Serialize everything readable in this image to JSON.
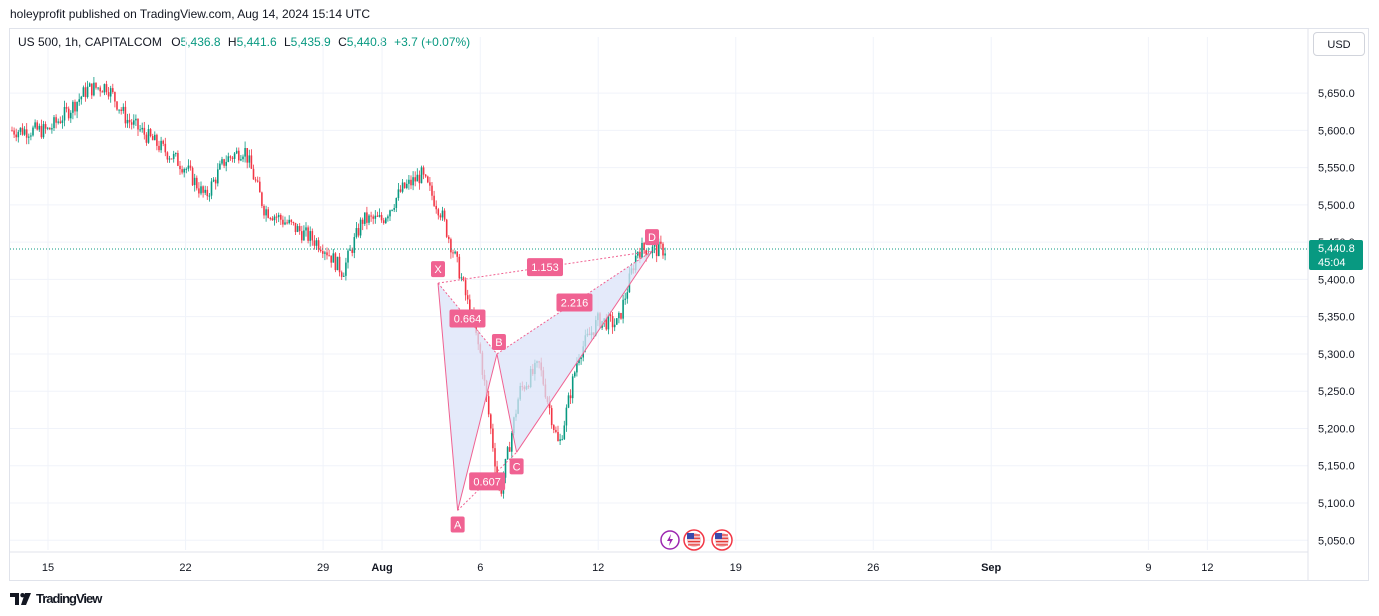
{
  "header": {
    "text": "holeyprofit published on TradingView.com, Aug 14, 2024 15:14 UTC"
  },
  "legend": {
    "symbol": "US 500, 1h, CAPITALCOM",
    "o_label": "O",
    "o_value": "5,436.8",
    "h_label": "H",
    "h_value": "5,441.6",
    "l_label": "L",
    "l_value": "5,435.9",
    "c_label": "C",
    "c_value": "5,440.8",
    "change": "+3.7 (+0.07%)"
  },
  "currency_button": "USD",
  "footer": {
    "brand": "TradingView",
    "logo_icon": "tradingview-logo-icon"
  },
  "colors": {
    "up": "#089981",
    "down": "#f23645",
    "pattern": "#f06292",
    "pattern_fill": "#dbe3f8",
    "price_line": "#089981"
  },
  "chart_data": {
    "type": "candlestick",
    "ylim": [
      5030,
      5680
    ],
    "y_ticks": [
      "5,050.0",
      "5,100.0",
      "5,150.0",
      "5,200.0",
      "5,250.0",
      "5,300.0",
      "5,350.0",
      "5,400.0",
      "5,450.0",
      "5,500.0",
      "5,550.0",
      "5,600.0",
      "5,650.0"
    ],
    "x_ticks": [
      "15",
      "22",
      "29",
      "Aug",
      "6",
      "12",
      "19",
      "26",
      "Sep",
      "9",
      "12"
    ],
    "last_price": {
      "value": 5440.8,
      "label": "5,440.8",
      "countdown": "45:04"
    },
    "price_path": [
      [
        "Jul 15",
        5600
      ],
      [
        "Jul 16",
        5625
      ],
      [
        "Jul 17",
        5655
      ],
      [
        "Jul 18",
        5660
      ],
      [
        "Jul 19",
        5615
      ],
      [
        "Jul 22",
        5550
      ],
      [
        "Jul 23",
        5510
      ],
      [
        "Jul 24",
        5560
      ],
      [
        "Jul 25",
        5575
      ],
      [
        "Jul 26",
        5495
      ],
      [
        "Jul 29",
        5445
      ],
      [
        "Jul 30",
        5410
      ],
      [
        "Jul 31",
        5480
      ],
      [
        "Aug 1",
        5480
      ],
      [
        "Aug 2",
        5520
      ],
      [
        "Aug 3",
        5540
      ],
      [
        "Aug 4",
        5490
      ],
      [
        "Aug 5",
        5405
      ],
      [
        "Aug 6",
        5300
      ],
      [
        "Aug 7",
        5110
      ],
      [
        "Aug 8",
        5250
      ],
      [
        "Aug 9",
        5285
      ],
      [
        "Aug 10",
        5175
      ],
      [
        "Aug 11",
        5300
      ],
      [
        "Aug 12",
        5345
      ],
      [
        "Aug 13",
        5340
      ],
      [
        "Aug 14",
        5440
      ]
    ],
    "harmonic_pattern": {
      "points": [
        {
          "label": "X",
          "date": "Aug 4",
          "price": 5395
        },
        {
          "label": "A",
          "date": "Aug 5",
          "price": 5090
        },
        {
          "label": "B",
          "date": "Aug 7",
          "price": 5300
        },
        {
          "label": "C",
          "date": "Aug 8",
          "price": 5168
        },
        {
          "label": "D",
          "date": "Aug 14",
          "price": 5438
        }
      ],
      "ratios": [
        {
          "label": "1.153",
          "between": "X-D"
        },
        {
          "label": "0.664",
          "between": "X-B"
        },
        {
          "label": "2.216",
          "between": "B-D"
        },
        {
          "label": "0.607",
          "between": "A-C"
        }
      ]
    },
    "event_icons": [
      "lightning-event-icon",
      "us-flag-event-icon",
      "us-flag-event-icon"
    ]
  }
}
